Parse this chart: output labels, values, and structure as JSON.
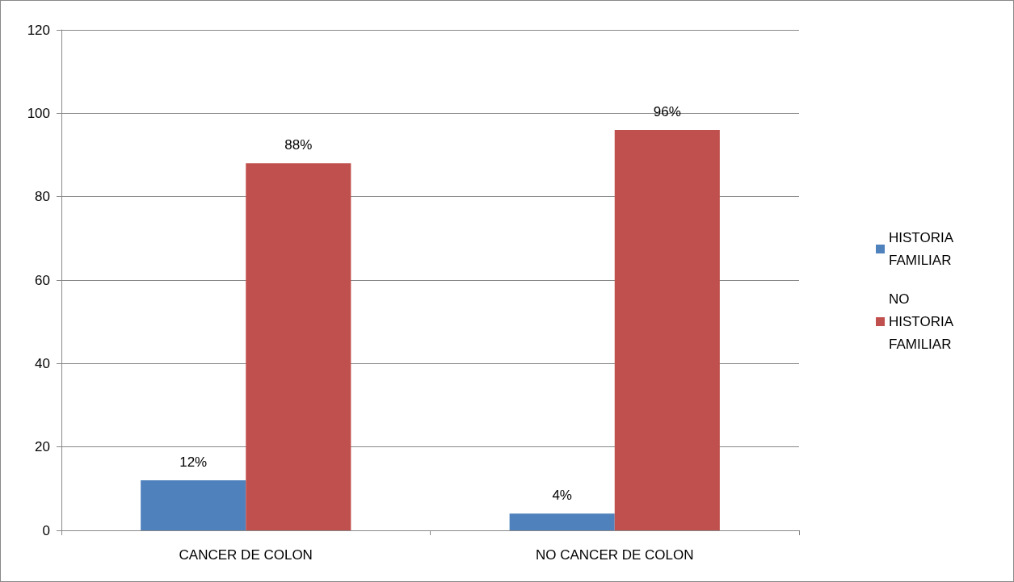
{
  "chart_data": {
    "type": "bar",
    "categories": [
      "CANCER DE COLON",
      "NO CANCER DE COLON"
    ],
    "series": [
      {
        "name": "HISTORIA FAMILIAR",
        "color": "#4f81bd",
        "values": [
          12,
          4
        ],
        "value_labels": [
          "12%",
          "4%"
        ]
      },
      {
        "name": "NO HISTORIA FAMILIAR",
        "color": "#c0504d",
        "values": [
          88,
          96
        ],
        "value_labels": [
          "88%",
          "96%"
        ]
      }
    ],
    "ylim": [
      0,
      120
    ],
    "yticks": [
      0,
      20,
      40,
      60,
      80,
      100,
      120
    ],
    "grid": "y",
    "legend": "right"
  }
}
